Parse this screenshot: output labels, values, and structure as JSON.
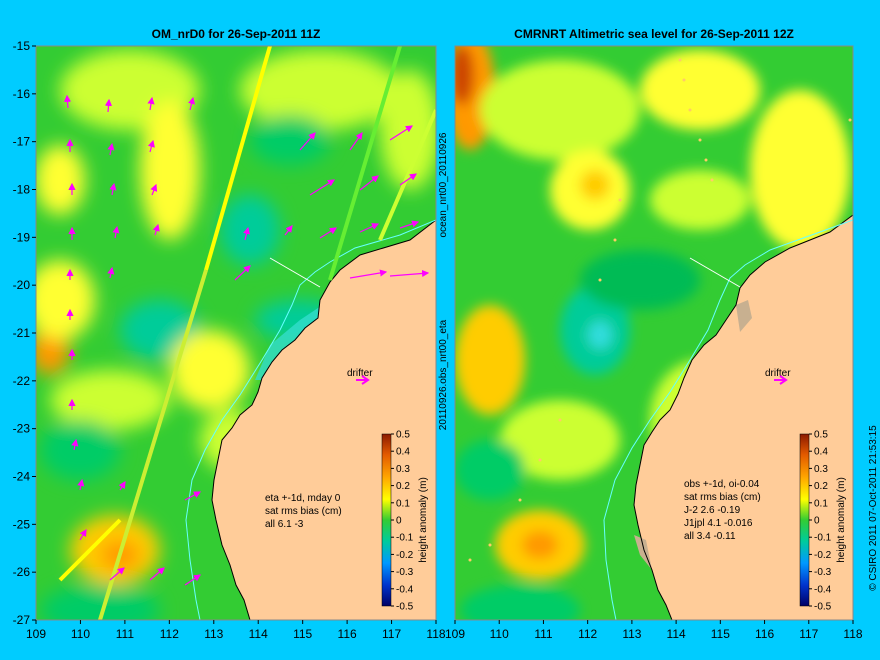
{
  "panels": [
    {
      "title": "OM_nrD0 for 26-Sep-2011 11Z",
      "annotation": [
        "eta +-1d, mday 0",
        "sat rms bias (cm)",
        "all 6.1 -3"
      ],
      "drifter_label": "drifter"
    },
    {
      "title": "CMRNRT Altimetric sea level  for 26-Sep-2011 12Z",
      "annotation": [
        "obs +-1d, oi-0.04",
        "sat rms bias (cm)",
        "J-2   2.6 -0.19",
        "J1jpl 4.1 -0.016",
        "all 3.4 -0.11"
      ],
      "drifter_label": "drifter"
    }
  ],
  "axes": {
    "x_ticks": [
      "109",
      "110",
      "111",
      "112",
      "113",
      "114",
      "115",
      "116",
      "117",
      "118"
    ],
    "y_ticks": [
      "-15",
      "-16",
      "-17",
      "-18",
      "-19",
      "-20",
      "-21",
      "-22",
      "-23",
      "-24",
      "-25",
      "-26",
      "-27"
    ],
    "lon_range": [
      109,
      118
    ],
    "lat_range": [
      -27,
      -15
    ]
  },
  "colorbar": {
    "label": "height anomaly (m)",
    "ticks": [
      "0.5",
      "0.4",
      "0.3",
      "0.2",
      "0.1",
      "0",
      "-0.1",
      "-0.2",
      "-0.3",
      "-0.4",
      "-0.5"
    ]
  },
  "side_text": {
    "middle_top": "ocean_nrt00_20110926",
    "middle_bottom": "20110926.obs_nrt00_eta",
    "right": "© CSIRO 2011  07-Oct-2011 21:53:15"
  },
  "colors": {
    "background": "#00ccff",
    "land": "#ffcc99",
    "field_base": "#33cc33",
    "arrows": "#ff00ff",
    "drifter": "#ff00ff"
  }
}
